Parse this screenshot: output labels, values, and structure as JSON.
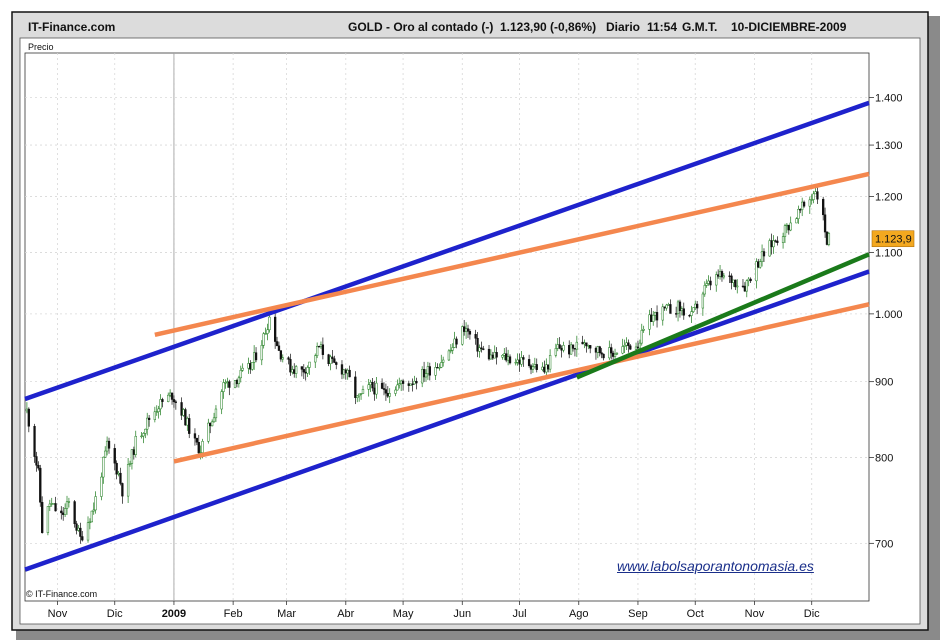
{
  "header": {
    "site": "IT-Finance.com",
    "instrument": "GOLD - Oro al contado (-)",
    "price_change": "1.123,90 (-0,86%)",
    "period": "Diario",
    "time": "11:54",
    "timezone": "G.M.T.",
    "date": "10-DICIEMBRE-2009"
  },
  "panel_label": "Precio",
  "copyright": "© IT-Finance.com",
  "watermark": "www.labolsaporantonomasia.es",
  "colors": {
    "blue_channel": "#1e22cc",
    "orange_channel": "#f4874e",
    "green_trend": "#1a7a1a",
    "last_price_box": "#f3a820",
    "candle_up": "#1a7a1a",
    "candle_down": "#111111"
  },
  "chart_data": {
    "type": "candlestick",
    "y_scale": "log",
    "ylim": [
      640,
      1500
    ],
    "y_ticks": [
      {
        "value": 700,
        "label": "700"
      },
      {
        "value": 800,
        "label": "800"
      },
      {
        "value": 900,
        "label": "900"
      },
      {
        "value": 1000,
        "label": "1.000"
      },
      {
        "value": 1100,
        "label": "1.100"
      },
      {
        "value": 1200,
        "label": "1.200"
      },
      {
        "value": 1300,
        "label": "1.300"
      },
      {
        "value": 1400,
        "label": "1.400"
      }
    ],
    "xlim": [
      "2008-10-15",
      "2009-12-31"
    ],
    "x_ticks": [
      {
        "date": "2008-11-01",
        "label": "Nov"
      },
      {
        "date": "2008-12-01",
        "label": "Dic"
      },
      {
        "date": "2009-01-01",
        "label": "2009"
      },
      {
        "date": "2009-02-01",
        "label": "Feb"
      },
      {
        "date": "2009-03-01",
        "label": "Mar"
      },
      {
        "date": "2009-04-01",
        "label": "Abr"
      },
      {
        "date": "2009-05-01",
        "label": "May"
      },
      {
        "date": "2009-06-01",
        "label": "Jun"
      },
      {
        "date": "2009-07-01",
        "label": "Jul"
      },
      {
        "date": "2009-08-01",
        "label": "Ago"
      },
      {
        "date": "2009-09-01",
        "label": "Sep"
      },
      {
        "date": "2009-10-01",
        "label": "Oct"
      },
      {
        "date": "2009-11-01",
        "label": "Nov"
      },
      {
        "date": "2009-12-01",
        "label": "Dic"
      }
    ],
    "last_price_label": "1.123,9",
    "last_price": 1123.9,
    "price_path": [
      [
        "2008-10-16",
        860
      ],
      [
        "2008-10-22",
        780
      ],
      [
        "2008-10-24",
        715
      ],
      [
        "2008-10-28",
        745
      ],
      [
        "2008-11-03",
        730
      ],
      [
        "2008-11-07",
        745
      ],
      [
        "2008-11-13",
        705
      ],
      [
        "2008-11-20",
        740
      ],
      [
        "2008-11-27",
        815
      ],
      [
        "2008-12-03",
        780
      ],
      [
        "2008-12-05",
        760
      ],
      [
        "2008-12-12",
        820
      ],
      [
        "2008-12-19",
        850
      ],
      [
        "2008-12-24",
        868
      ],
      [
        "2008-12-31",
        882
      ],
      [
        "2009-01-06",
        855
      ],
      [
        "2009-01-12",
        818
      ],
      [
        "2009-01-15",
        810
      ],
      [
        "2009-01-21",
        850
      ],
      [
        "2009-01-27",
        895
      ],
      [
        "2009-02-03",
        905
      ],
      [
        "2009-02-10",
        920
      ],
      [
        "2009-02-17",
        965
      ],
      [
        "2009-02-20",
        995
      ],
      [
        "2009-02-25",
        945
      ],
      [
        "2009-03-03",
        920
      ],
      [
        "2009-03-09",
        915
      ],
      [
        "2009-03-13",
        925
      ],
      [
        "2009-03-18",
        950
      ],
      [
        "2009-03-25",
        925
      ],
      [
        "2009-04-01",
        915
      ],
      [
        "2009-04-07",
        875
      ],
      [
        "2009-04-14",
        893
      ],
      [
        "2009-04-21",
        885
      ],
      [
        "2009-04-28",
        895
      ],
      [
        "2009-05-05",
        900
      ],
      [
        "2009-05-12",
        912
      ],
      [
        "2009-05-19",
        925
      ],
      [
        "2009-05-26",
        945
      ],
      [
        "2009-06-02",
        980
      ],
      [
        "2009-06-09",
        950
      ],
      [
        "2009-06-16",
        935
      ],
      [
        "2009-06-23",
        935
      ],
      [
        "2009-06-30",
        930
      ],
      [
        "2009-07-07",
        925
      ],
      [
        "2009-07-14",
        915
      ],
      [
        "2009-07-21",
        950
      ],
      [
        "2009-07-28",
        945
      ],
      [
        "2009-08-04",
        960
      ],
      [
        "2009-08-11",
        945
      ],
      [
        "2009-08-18",
        940
      ],
      [
        "2009-08-25",
        950
      ],
      [
        "2009-09-01",
        955
      ],
      [
        "2009-09-08",
        995
      ],
      [
        "2009-09-15",
        1005
      ],
      [
        "2009-09-22",
        1010
      ],
      [
        "2009-09-29",
        995
      ],
      [
        "2009-10-06",
        1040
      ],
      [
        "2009-10-13",
        1060
      ],
      [
        "2009-10-20",
        1055
      ],
      [
        "2009-10-27",
        1045
      ],
      [
        "2009-11-03",
        1085
      ],
      [
        "2009-11-10",
        1115
      ],
      [
        "2009-11-17",
        1140
      ],
      [
        "2009-11-24",
        1170
      ],
      [
        "2009-12-01",
        1200
      ],
      [
        "2009-12-03",
        1215
      ],
      [
        "2009-12-07",
        1160
      ],
      [
        "2009-12-09",
        1120
      ],
      [
        "2009-12-10",
        1124
      ]
    ],
    "trendlines": [
      {
        "color": "blue",
        "start": [
          "2008-10-15",
          876
        ],
        "end": [
          "2009-12-31",
          1388
        ]
      },
      {
        "color": "blue",
        "start": [
          "2008-10-15",
          672
        ],
        "end": [
          "2009-12-31",
          1068
        ]
      },
      {
        "color": "orange",
        "start": [
          "2008-12-22",
          968
        ],
        "end": [
          "2009-12-31",
          1243
        ]
      },
      {
        "color": "orange",
        "start": [
          "2009-01-01",
          795
        ],
        "end": [
          "2009-12-31",
          1015
        ]
      },
      {
        "color": "green",
        "start": [
          "2009-07-31",
          906
        ],
        "end": [
          "2009-12-31",
          1097
        ]
      }
    ]
  }
}
